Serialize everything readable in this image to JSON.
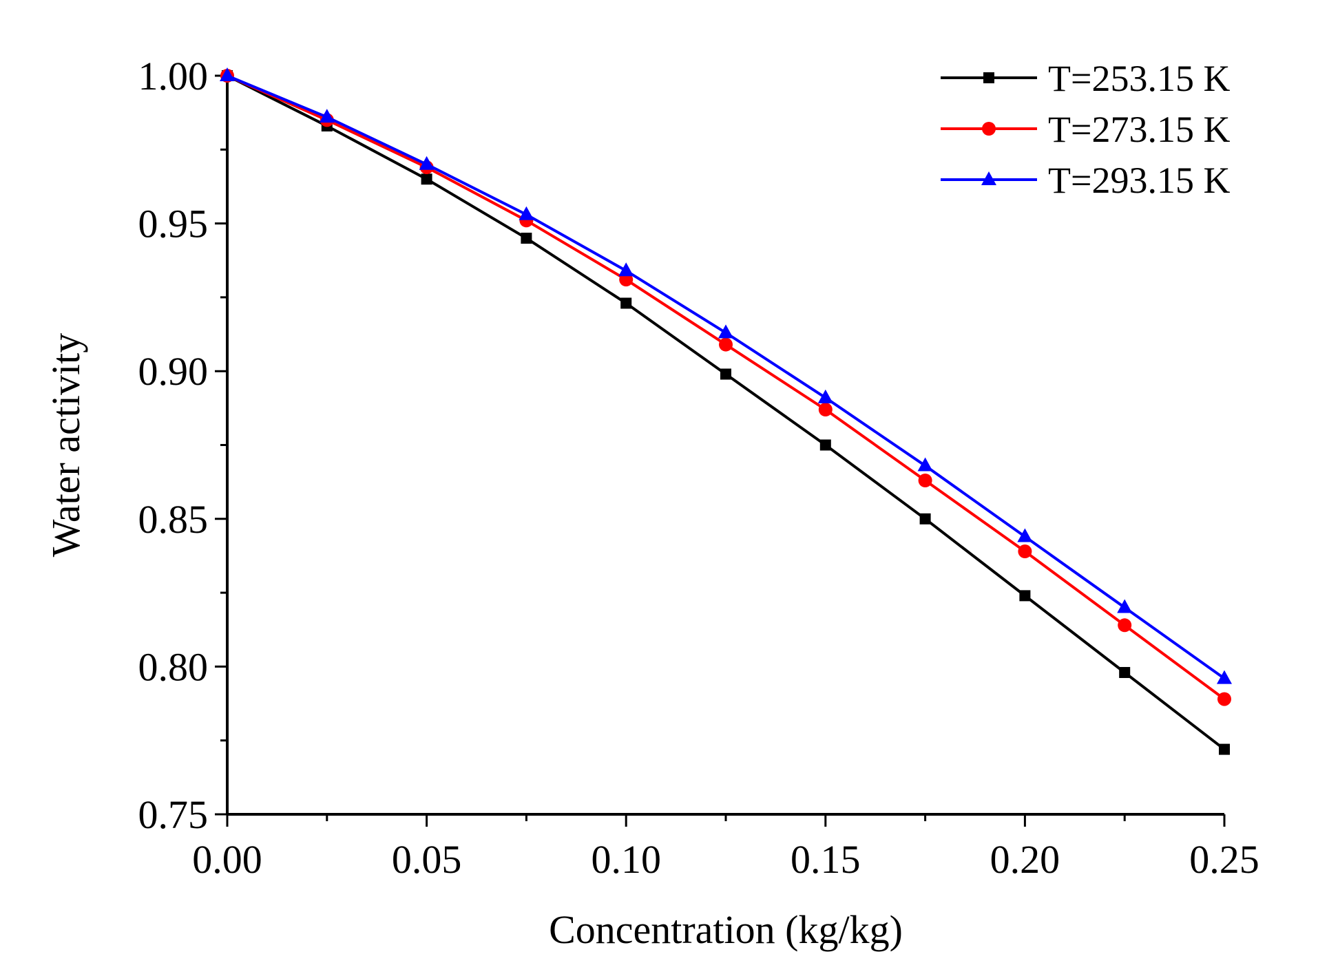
{
  "chart_data": {
    "type": "line",
    "xlabel": "Concentration (kg/kg)",
    "ylabel": "Water activity",
    "xlim": [
      0,
      0.25
    ],
    "ylim": [
      0.75,
      1.0
    ],
    "x_ticks": [
      "0.00",
      "0.05",
      "0.10",
      "0.15",
      "0.20",
      "0.25"
    ],
    "y_ticks": [
      "0.75",
      "0.80",
      "0.85",
      "0.90",
      "0.95",
      "1.00"
    ],
    "grid": false,
    "legend_position": "top-right",
    "x": [
      0,
      0.025,
      0.05,
      0.075,
      0.1,
      0.125,
      0.15,
      0.175,
      0.2,
      0.225,
      0.25
    ],
    "series": [
      {
        "name": "T=253.15 K",
        "color": "#000000",
        "marker": "square",
        "values": [
          1.0,
          0.983,
          0.965,
          0.945,
          0.923,
          0.899,
          0.875,
          0.85,
          0.824,
          0.798,
          0.772
        ]
      },
      {
        "name": "T=273.15 K",
        "color": "#ff0000",
        "marker": "circle",
        "values": [
          1.0,
          0.985,
          0.969,
          0.951,
          0.931,
          0.909,
          0.887,
          0.863,
          0.839,
          0.814,
          0.789
        ]
      },
      {
        "name": "T=293.15 K",
        "color": "#0000ff",
        "marker": "triangle",
        "values": [
          1.0,
          0.986,
          0.97,
          0.953,
          0.934,
          0.913,
          0.891,
          0.868,
          0.844,
          0.82,
          0.796
        ]
      }
    ]
  }
}
